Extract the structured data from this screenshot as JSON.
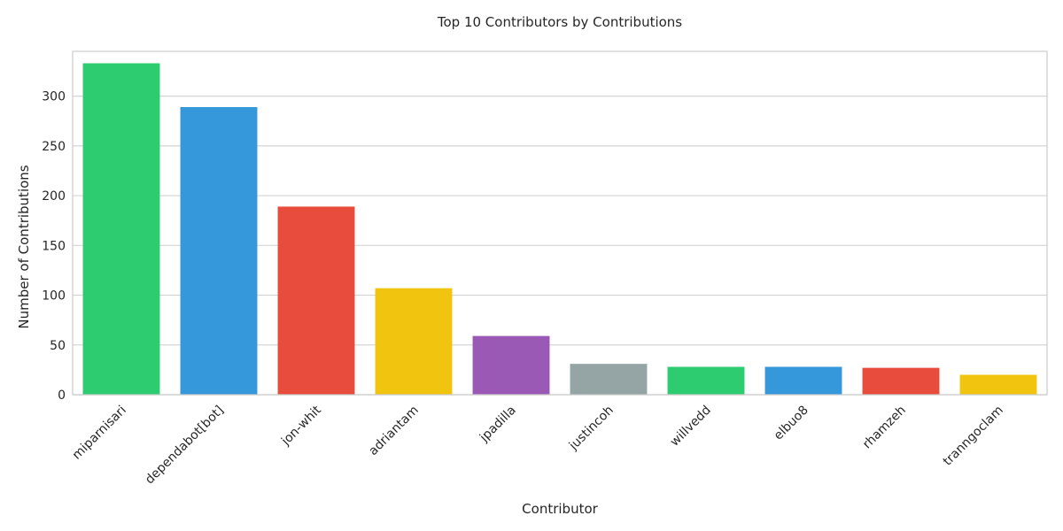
{
  "chart_data": {
    "type": "bar",
    "title": "Top 10 Contributors by Contributions",
    "xlabel": "Contributor",
    "ylabel": "Number of Contributions",
    "categories": [
      "miparnisari",
      "dependabot[bot]",
      "jon-whit",
      "adriantam",
      "jpadilla",
      "justincoh",
      "willvedd",
      "elbuo8",
      "rhamzeh",
      "tranngoclam"
    ],
    "values": [
      333,
      289,
      189,
      107,
      59,
      31,
      28,
      28,
      27,
      20
    ],
    "colors": [
      "#2ecc71",
      "#3498db",
      "#e74c3c",
      "#f1c40f",
      "#9b59b6",
      "#95a5a6",
      "#2ecc71",
      "#3498db",
      "#e74c3c",
      "#f1c40f"
    ],
    "ylim": [
      0,
      345
    ],
    "yticks": [
      0,
      50,
      100,
      150,
      200,
      250,
      300
    ],
    "grid": "horizontal",
    "x_tick_rotation": 45
  }
}
